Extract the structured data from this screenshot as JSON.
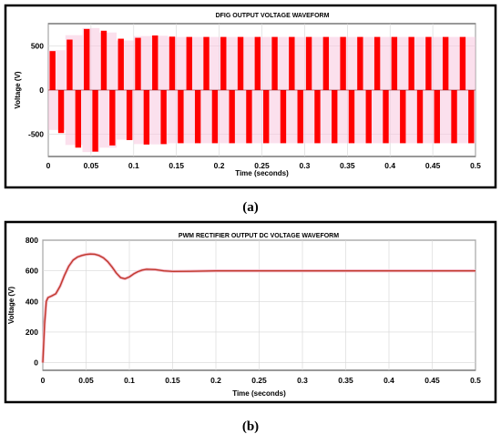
{
  "chart_data": [
    {
      "type": "line",
      "title": "DFIG OUTPUT VOLTAGE WAVEFORM",
      "xlabel": "Time (seconds)",
      "ylabel": "Voltage (V)",
      "caption": "(a)",
      "xlim": [
        0,
        0.5
      ],
      "ylim": [
        -750,
        750
      ],
      "xticks": [
        0,
        0.05,
        0.1,
        0.15,
        0.2,
        0.25,
        0.3,
        0.35,
        0.4,
        0.45,
        0.5
      ],
      "xtick_labels": [
        "0",
        "0.05",
        "0.1",
        "0.15",
        "0.2",
        "0.25",
        "0.3",
        "0.35",
        "0.4",
        "0.45",
        "0.5"
      ],
      "yticks": [
        500,
        0,
        -500
      ],
      "ytick_labels": [
        "500",
        "0",
        "-500"
      ],
      "grid": true,
      "series_color": "#ff0000",
      "envelope": {
        "x": [
          0,
          0.005,
          0.01,
          0.02,
          0.03,
          0.04,
          0.05,
          0.06,
          0.07,
          0.08,
          0.09,
          0.1,
          0.11,
          0.12,
          0.15,
          0.2,
          0.3,
          0.4,
          0.5
        ],
        "positive_peak": [
          420,
          440,
          450,
          520,
          620,
          680,
          700,
          690,
          650,
          600,
          560,
          570,
          610,
          620,
          600,
          600,
          600,
          600,
          600
        ],
        "negative_peak": [
          -420,
          -440,
          -450,
          -520,
          -620,
          -680,
          -700,
          -690,
          -650,
          -600,
          -560,
          -570,
          -610,
          -620,
          -600,
          -600,
          -600,
          -600,
          -600
        ]
      },
      "pulse_period": 0.02
    },
    {
      "type": "line",
      "title": "PWM RECTIFIER OUTPUT DC VOLTAGE WAVEFORM",
      "xlabel": "Time (seconds)",
      "ylabel": "Voltage (V)",
      "caption": "(b)",
      "xlim": [
        0,
        0.5
      ],
      "ylim": [
        -50,
        800
      ],
      "xticks": [
        0,
        0.05,
        0.1,
        0.15,
        0.2,
        0.25,
        0.3,
        0.35,
        0.4,
        0.45,
        0.5
      ],
      "xtick_labels": [
        "0",
        "0.05",
        "0.1",
        "0.15",
        "0.2",
        "0.25",
        "0.3",
        "0.35",
        "0.4",
        "0.45",
        "0.5"
      ],
      "yticks": [
        0,
        200,
        400,
        600,
        800
      ],
      "ytick_labels": [
        "0",
        "200",
        "400",
        "600",
        "800"
      ],
      "grid": true,
      "series_color": "#c0392b",
      "series": [
        {
          "x": [
            0,
            0.002,
            0.004,
            0.006,
            0.01,
            0.015,
            0.02,
            0.025,
            0.03,
            0.035,
            0.04,
            0.045,
            0.05,
            0.055,
            0.06,
            0.065,
            0.07,
            0.075,
            0.08,
            0.085,
            0.09,
            0.095,
            0.1,
            0.105,
            0.11,
            0.115,
            0.12,
            0.13,
            0.14,
            0.15,
            0.17,
            0.2,
            0.25,
            0.3,
            0.35,
            0.4,
            0.45,
            0.5
          ],
          "values": [
            0,
            250,
            400,
            425,
            435,
            450,
            500,
            570,
            630,
            670,
            690,
            700,
            707,
            710,
            708,
            700,
            685,
            660,
            625,
            585,
            555,
            548,
            560,
            580,
            595,
            605,
            610,
            608,
            600,
            596,
            597,
            600,
            600,
            600,
            600,
            600,
            600,
            600
          ]
        }
      ]
    }
  ]
}
